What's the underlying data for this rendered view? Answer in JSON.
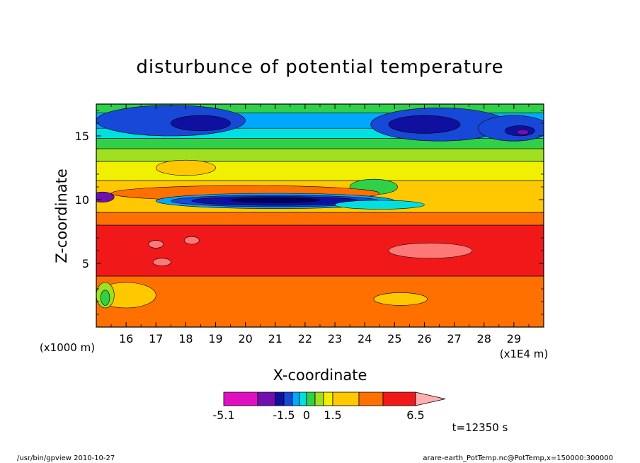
{
  "chart_data": {
    "type": "heatmap",
    "title": "disturbunce of potential temperature",
    "xlabel": "X-coordinate",
    "ylabel": "Z-coordinate",
    "x_unit_left": "(x1000 m)",
    "x_unit_right": "(x1E4 m)",
    "xlim": [
      15.0,
      30.0
    ],
    "ylim": [
      0.0,
      17.5
    ],
    "x_ticks": [
      "16",
      "17",
      "18",
      "19",
      "20",
      "21",
      "22",
      "23",
      "24",
      "25",
      "26",
      "27",
      "28",
      "29"
    ],
    "y_ticks": [
      "5",
      "10",
      "15"
    ],
    "colorbar": {
      "colors": [
        "#e010c0",
        "#7010b0",
        "#1010a0",
        "#1848d8",
        "#00a8ff",
        "#00e0e0",
        "#30d048",
        "#a0e020",
        "#f0f000",
        "#ffc800",
        "#ff7000",
        "#f01818",
        "#ff7878",
        "#ffb0b0"
      ],
      "labels": [
        "-5.1",
        "-1.5",
        "0",
        "1.5",
        "6.5"
      ]
    },
    "time_label": "t=12350 s",
    "footer_left": "/usr/bin/gpview  2010-10-27",
    "footer_right": "arare-earth_PotTemp.nc@PotTemp,x=150000:300000",
    "bands": [
      {
        "z0": 0.0,
        "z1": 4.0,
        "color": "#ff7000"
      },
      {
        "z0": 4.0,
        "z1": 8.0,
        "color": "#f01818"
      },
      {
        "z0": 8.0,
        "z1": 9.0,
        "color": "#ff7000"
      },
      {
        "z0": 9.0,
        "z1": 11.5,
        "color": "#ffc800"
      },
      {
        "z0": 11.5,
        "z1": 13.0,
        "color": "#f0f000"
      },
      {
        "z0": 13.0,
        "z1": 14.0,
        "color": "#a0e020"
      },
      {
        "z0": 14.0,
        "z1": 14.8,
        "color": "#30d048"
      },
      {
        "z0": 14.8,
        "z1": 15.6,
        "color": "#00e0e0"
      },
      {
        "z0": 15.6,
        "z1": 16.8,
        "color": "#00a8ff"
      },
      {
        "z0": 16.8,
        "z1": 17.5,
        "color": "#30d048"
      }
    ],
    "blobs": [
      {
        "x": 17.5,
        "z": 16.2,
        "rx": 2.5,
        "rz": 1.2,
        "color": "#1848d8"
      },
      {
        "x": 18.5,
        "z": 16.0,
        "rx": 1.0,
        "rz": 0.6,
        "color": "#1010a0"
      },
      {
        "x": 26.5,
        "z": 15.9,
        "rx": 2.3,
        "rz": 1.3,
        "color": "#1848d8"
      },
      {
        "x": 26.0,
        "z": 15.9,
        "rx": 1.2,
        "rz": 0.7,
        "color": "#1010a0"
      },
      {
        "x": 29.0,
        "z": 15.6,
        "rx": 1.2,
        "rz": 1.0,
        "color": "#1848d8"
      },
      {
        "x": 29.2,
        "z": 15.4,
        "rx": 0.5,
        "rz": 0.4,
        "color": "#1010a0"
      },
      {
        "x": 29.3,
        "z": 15.3,
        "rx": 0.2,
        "rz": 0.2,
        "color": "#7010b0"
      },
      {
        "x": 18.0,
        "z": 12.5,
        "rx": 1.0,
        "rz": 0.6,
        "color": "#ffc800"
      },
      {
        "x": 24.3,
        "z": 11.0,
        "rx": 0.8,
        "rz": 0.6,
        "color": "#30d048"
      },
      {
        "x": 20.0,
        "z": 10.5,
        "rx": 4.5,
        "rz": 0.6,
        "color": "#ff7000"
      },
      {
        "x": 21.0,
        "z": 9.9,
        "rx": 4.0,
        "rz": 0.6,
        "color": "#00a8ff"
      },
      {
        "x": 21.0,
        "z": 9.9,
        "rx": 3.5,
        "rz": 0.45,
        "color": "#1848d8"
      },
      {
        "x": 21.0,
        "z": 9.9,
        "rx": 2.8,
        "rz": 0.35,
        "color": "#1010a0"
      },
      {
        "x": 21.0,
        "z": 9.95,
        "rx": 1.5,
        "rz": 0.18,
        "color": "#000060"
      },
      {
        "x": 15.2,
        "z": 10.2,
        "rx": 0.4,
        "rz": 0.4,
        "color": "#7010b0"
      },
      {
        "x": 24.5,
        "z": 9.6,
        "rx": 1.5,
        "rz": 0.35,
        "color": "#00e0e0"
      },
      {
        "x": 26.2,
        "z": 6.0,
        "rx": 1.4,
        "rz": 0.6,
        "color": "#ff7878"
      },
      {
        "x": 17.0,
        "z": 6.5,
        "rx": 0.25,
        "rz": 0.3,
        "color": "#ff7878"
      },
      {
        "x": 18.2,
        "z": 6.8,
        "rx": 0.25,
        "rz": 0.3,
        "color": "#ff7878"
      },
      {
        "x": 17.2,
        "z": 5.1,
        "rx": 0.3,
        "rz": 0.3,
        "color": "#ff7878"
      },
      {
        "x": 16.0,
        "z": 2.5,
        "rx": 1.0,
        "rz": 1.0,
        "color": "#ffc800"
      },
      {
        "x": 15.3,
        "z": 2.5,
        "rx": 0.3,
        "rz": 1.0,
        "color": "#a0e020"
      },
      {
        "x": 15.3,
        "z": 2.3,
        "rx": 0.15,
        "rz": 0.6,
        "color": "#30d048"
      },
      {
        "x": 25.2,
        "z": 2.2,
        "rx": 0.9,
        "rz": 0.5,
        "color": "#ffc800"
      }
    ]
  }
}
